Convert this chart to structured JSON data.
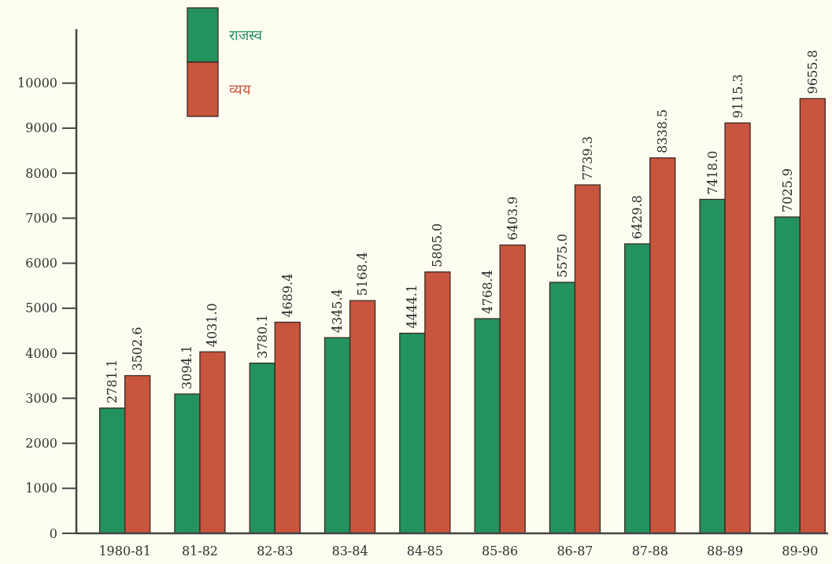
{
  "chart_data": {
    "type": "bar",
    "categories": [
      "1980-81",
      "81-82",
      "82-83",
      "83-84",
      "84-85",
      "85-86",
      "86-87",
      "87-88",
      "88-89",
      "89-90"
    ],
    "series": [
      {
        "name": "राजस्व",
        "color": "#23925f",
        "values": [
          2781.1,
          3094.1,
          3780.1,
          4345.4,
          4444.1,
          4768.4,
          5575.0,
          6429.8,
          7418.0,
          7025.9
        ],
        "value_labels": [
          "2781.1",
          "3094.1",
          "3780.1",
          "4345.4",
          "4444.1",
          "4768.4",
          "5575.0",
          "6429.8",
          "7418.0",
          "7025.9"
        ]
      },
      {
        "name": "व्यय",
        "color": "#c9553f",
        "values": [
          3502.6,
          4031.0,
          4689.4,
          5168.4,
          5805.0,
          6403.9,
          7739.3,
          8338.5,
          9115.3,
          9655.8
        ],
        "value_labels": [
          "3502.6",
          "4031.0",
          "4689.4",
          "5168.4",
          "5805.0",
          "6403.9",
          "7739.3",
          "8338.5",
          "9115.3",
          "9655.8"
        ]
      }
    ],
    "ylim": [
      0,
      11200
    ],
    "yticks": [
      0,
      1000,
      2000,
      3000,
      4000,
      5000,
      6000,
      7000,
      8000,
      9000,
      10000
    ],
    "legend": "top left"
  }
}
